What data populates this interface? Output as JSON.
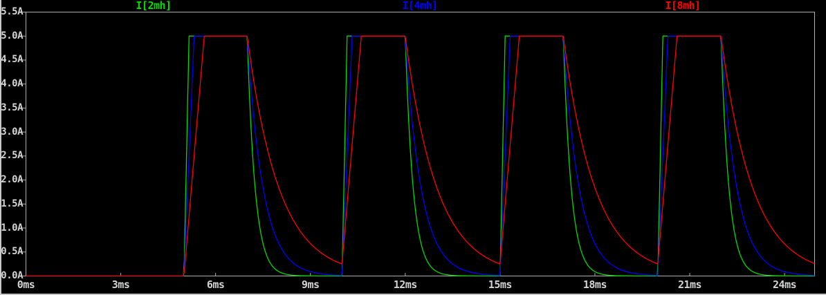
{
  "window": {
    "background": "#000000",
    "frame_border_color": "#c8c8c8"
  },
  "chart_data": {
    "type": "line",
    "title": "",
    "background": "#000000",
    "axis_color": "#b0b0b0",
    "tick_label_color": "#d4d4d4",
    "grid": false,
    "legend_position": "top",
    "xlim": [
      0,
      24.95
    ],
    "ylim": [
      0,
      5.5
    ],
    "x_unit": "ms",
    "y_unit": "A",
    "x_ticks": [
      {
        "value": 0,
        "label": "0ms"
      },
      {
        "value": 3,
        "label": "3ms"
      },
      {
        "value": 6,
        "label": "6ms"
      },
      {
        "value": 9,
        "label": "9ms"
      },
      {
        "value": 12,
        "label": "12ms"
      },
      {
        "value": 15,
        "label": "15ms"
      },
      {
        "value": 18,
        "label": "18ms"
      },
      {
        "value": 21,
        "label": "21ms"
      },
      {
        "value": 24,
        "label": "24ms"
      }
    ],
    "y_ticks": [
      {
        "value": 5.5,
        "label": "5.5A"
      },
      {
        "value": 5.0,
        "label": "5.0A"
      },
      {
        "value": 4.5,
        "label": "4.5A"
      },
      {
        "value": 4.0,
        "label": "4.0A"
      },
      {
        "value": 3.5,
        "label": "3.5A"
      },
      {
        "value": 3.0,
        "label": "3.0A"
      },
      {
        "value": 2.5,
        "label": "2.5A"
      },
      {
        "value": 2.0,
        "label": "2.0A"
      },
      {
        "value": 1.5,
        "label": "1.5A"
      },
      {
        "value": 1.0,
        "label": "1.0A"
      },
      {
        "value": 0.5,
        "label": "0.5A"
      },
      {
        "value": 0.0,
        "label": "0.0A"
      }
    ],
    "legend": [
      {
        "label": "I[2mh]",
        "color": "#00dc00"
      },
      {
        "label": "I[4mh]",
        "color": "#0000ff"
      },
      {
        "label": "I[8mh]",
        "color": "#ff0000"
      }
    ],
    "series": [
      {
        "name": "I[2mh]",
        "color": "#00dc00",
        "inductance_mH": 2,
        "rise_rate_A_per_ms": 31.25,
        "decay_tau_ms": 0.25
      },
      {
        "name": "I[4mh]",
        "color": "#0000ff",
        "inductance_mH": 4,
        "rise_rate_A_per_ms": 15.6,
        "decay_tau_ms": 0.5
      },
      {
        "name": "I[8mh]",
        "color": "#ff0000",
        "inductance_mH": 8,
        "rise_rate_A_per_ms": 7.8,
        "decay_tau_ms": 1.0
      }
    ],
    "drive": {
      "pulse_start_times_ms": [
        5,
        10,
        15,
        20
      ],
      "pulse_on_width_ms": 2,
      "period_ms": 5,
      "current_clamp_A": 5.0,
      "initial_current_A": 0
    }
  }
}
